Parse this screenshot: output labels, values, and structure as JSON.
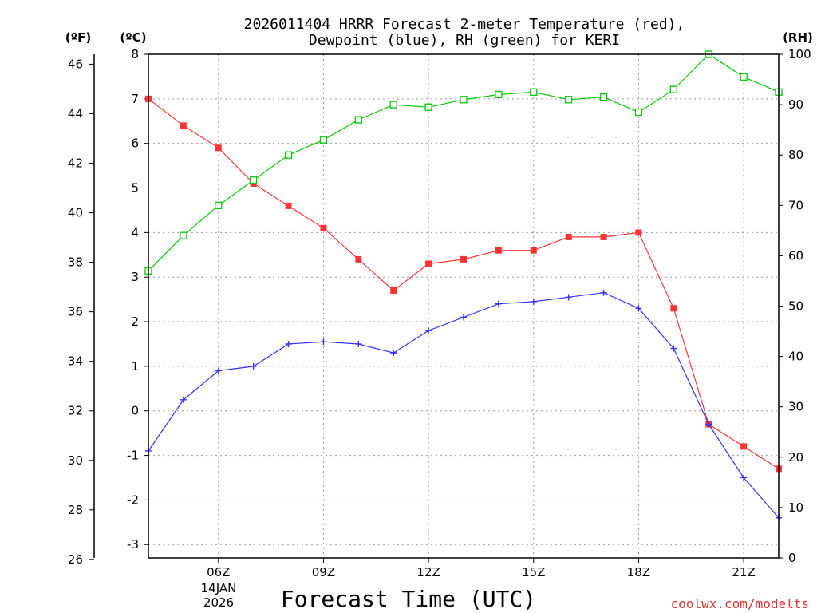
{
  "chart_data": {
    "type": "line",
    "title_line1": "2026011404 HRRR Forecast 2-meter Temperature (red),",
    "title_line2": "Dewpoint (blue), RH (green) for KERI",
    "xlabel": "Forecast Time (UTC)",
    "date_label_line1": "14JAN",
    "date_label_line2": "2026",
    "watermark": "coolwx.com/modelts",
    "unit_f": "(ºF)",
    "unit_c": "(ºC)",
    "unit_rh": "(RH)",
    "x_hours": [
      4,
      5,
      6,
      7,
      8,
      9,
      10,
      11,
      12,
      13,
      14,
      15,
      16,
      17,
      18,
      19,
      20,
      21,
      22
    ],
    "x_ticks": [
      {
        "hour": 6,
        "label": "06Z"
      },
      {
        "hour": 9,
        "label": "09Z"
      },
      {
        "hour": 12,
        "label": "12Z"
      },
      {
        "hour": 15,
        "label": "15Z"
      },
      {
        "hour": 18,
        "label": "18Z"
      },
      {
        "hour": 21,
        "label": "21Z"
      }
    ],
    "xlim": [
      4,
      22
    ],
    "c_axis": {
      "ylim": [
        -3.3,
        8
      ],
      "ticks": [
        "-3",
        "-2",
        "-1",
        "0",
        "1",
        "2",
        "3",
        "4",
        "5",
        "6",
        "7",
        "8"
      ]
    },
    "f_axis": {
      "ylim": [
        26.06,
        46.4
      ],
      "ticks": [
        "26",
        "28",
        "30",
        "32",
        "34",
        "36",
        "38",
        "40",
        "42",
        "44",
        "46"
      ]
    },
    "rh_axis": {
      "ylim": [
        0,
        100
      ],
      "ticks": [
        "0",
        "10",
        "20",
        "30",
        "40",
        "50",
        "60",
        "70",
        "80",
        "90",
        "100"
      ]
    },
    "series": [
      {
        "name": "Temperature",
        "units": "C",
        "color": "#ff3333",
        "marker": "filled-square",
        "values": [
          7.0,
          6.4,
          5.9,
          5.1,
          4.6,
          4.1,
          3.4,
          2.7,
          3.3,
          3.4,
          3.6,
          3.6,
          3.9,
          3.9,
          4.0,
          2.3,
          -0.3,
          -0.8,
          -1.3
        ]
      },
      {
        "name": "Dewpoint",
        "units": "C",
        "color": "#3333ff",
        "marker": "plus",
        "values": [
          -0.9,
          0.25,
          0.9,
          1.0,
          1.5,
          1.55,
          1.5,
          1.3,
          1.8,
          2.1,
          2.4,
          2.45,
          2.55,
          2.65,
          2.3,
          1.4,
          -0.3,
          -1.5,
          -2.4
        ]
      },
      {
        "name": "RH",
        "units": "%",
        "color": "#00cc00",
        "marker": "open-square",
        "values": [
          57,
          64,
          70,
          75,
          80,
          83,
          87,
          90,
          89.5,
          91,
          92,
          92.5,
          91,
          91.5,
          88.5,
          93,
          100,
          95.5,
          92.5
        ]
      }
    ]
  }
}
